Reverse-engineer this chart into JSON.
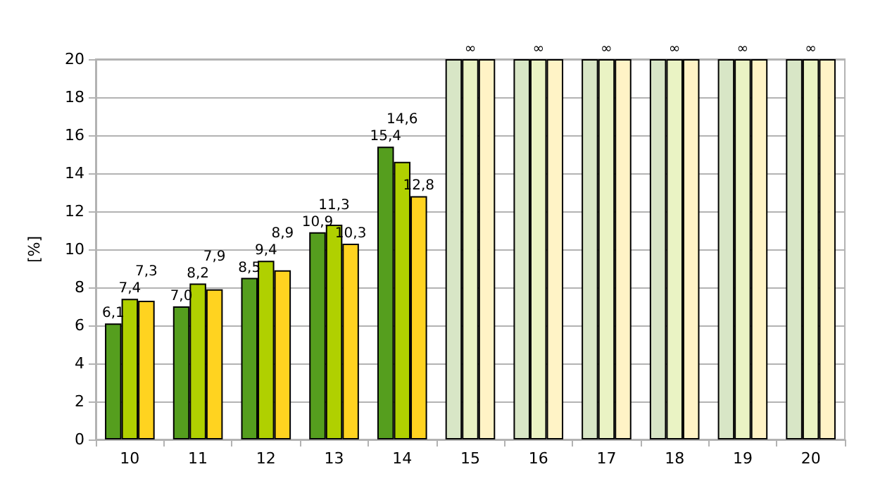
{
  "chart_data": {
    "type": "bar",
    "ylabel": "[%]",
    "categories": [
      "10",
      "11",
      "12",
      "13",
      "14",
      "15",
      "16",
      "17",
      "18",
      "19",
      "20"
    ],
    "series": [
      {
        "colors": [
          "#559e1e",
          "#559e1e",
          "#559e1e",
          "#559e1e",
          "#559e1e",
          "#d8e6c6",
          "#d8e6c6",
          "#d8e6c6",
          "#d8e6c6",
          "#d8e6c6",
          "#d8e6c6"
        ],
        "values": [
          6.1,
          7.0,
          8.5,
          10.9,
          15.4,
          20,
          20,
          20,
          20,
          20,
          20
        ],
        "value_labels": [
          "6,1",
          "7,0",
          "8,5",
          "10,9",
          "15,4",
          null,
          null,
          null,
          null,
          null,
          null
        ]
      },
      {
        "colors": [
          "#b0d000",
          "#b0d000",
          "#b0d000",
          "#b0d000",
          "#b0d000",
          "#eaf3c4",
          "#eaf3c4",
          "#eaf3c4",
          "#eaf3c4",
          "#eaf3c4",
          "#eaf3c4"
        ],
        "values": [
          7.4,
          8.2,
          9.4,
          11.3,
          14.6,
          20,
          20,
          20,
          20,
          20,
          20
        ],
        "value_labels": [
          "7,4",
          "8,2",
          "9,4",
          "11,3",
          "14,6",
          "∞",
          "∞",
          "∞",
          "∞",
          "∞",
          "∞"
        ]
      },
      {
        "colors": [
          "#ffd320",
          "#ffd320",
          "#ffd320",
          "#ffd320",
          "#ffd320",
          "#fff3c6",
          "#fff3c6",
          "#fff3c6",
          "#fff3c6",
          "#fff3c6",
          "#fff3c6"
        ],
        "values": [
          7.3,
          7.9,
          8.9,
          10.3,
          12.8,
          20,
          20,
          20,
          20,
          20,
          20
        ],
        "value_labels": [
          "7,3",
          "7,9",
          "8,9",
          "10,3",
          "12,8",
          null,
          null,
          null,
          null,
          null,
          null
        ]
      }
    ],
    "ylim": [
      0,
      20
    ],
    "yticks": [
      0,
      2,
      4,
      6,
      8,
      10,
      12,
      14,
      16,
      18,
      20
    ],
    "grid": "y"
  }
}
